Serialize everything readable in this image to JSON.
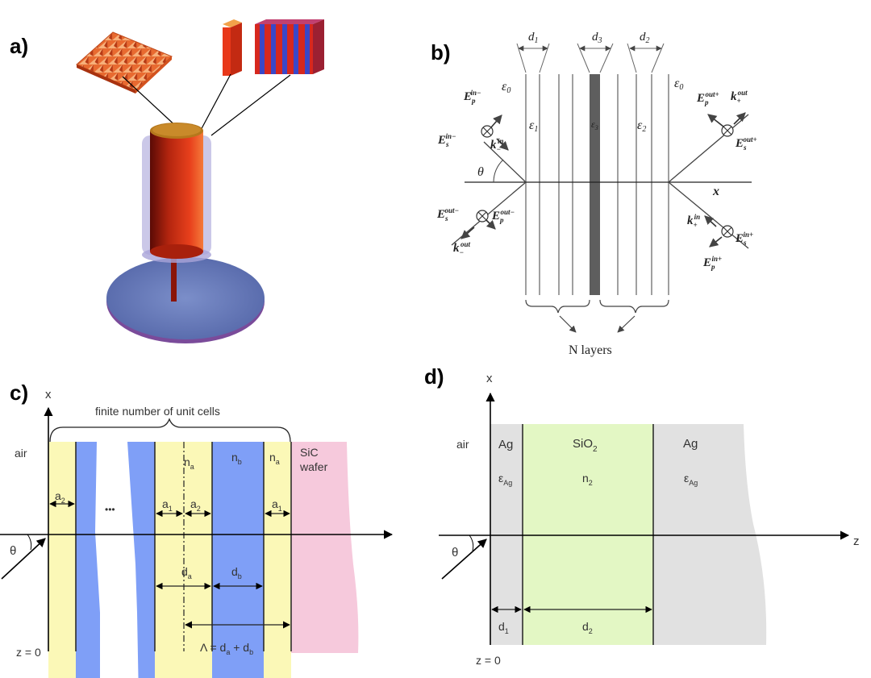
{
  "panels": {
    "a": {
      "label": "a)"
    },
    "b": {
      "label": "b)",
      "thickness_labels": [
        "d",
        "1",
        "d",
        "3",
        "d",
        "2"
      ],
      "eps0_left": [
        "ε",
        "0"
      ],
      "eps0_right": [
        "ε",
        "0"
      ],
      "eps1": [
        "ε",
        "1"
      ],
      "eps3": [
        "ε",
        "3"
      ],
      "eps2": [
        "ε",
        "2"
      ],
      "left_top_field": [
        "E",
        "p",
        "in−"
      ],
      "left_top_s": [
        "E",
        "s",
        "in−"
      ],
      "left_top_k": [
        "k",
        "−",
        "in"
      ],
      "theta": "θ",
      "left_bottom_s": [
        "E",
        "s",
        "out−"
      ],
      "left_bottom_p": [
        "E",
        "p",
        "out−"
      ],
      "left_bottom_k": [
        "k",
        "−",
        "out"
      ],
      "right_top_p": [
        "E",
        "p",
        "out+"
      ],
      "right_top_k": [
        "k",
        "+",
        "out"
      ],
      "right_top_s": [
        "E",
        "s",
        "out+"
      ],
      "right_bottom_k": [
        "k",
        "+",
        "in"
      ],
      "right_bottom_s": [
        "E",
        "s",
        "in+"
      ],
      "right_bottom_p": [
        "E",
        "p",
        "in+"
      ],
      "x_axis": "x",
      "n_layers": "N layers"
    },
    "c": {
      "label": "c)",
      "x_axis": "x",
      "brace_label": "finite number of unit cells",
      "air": "air",
      "sic": [
        "SiC",
        "wafer"
      ],
      "a2_left": [
        "a",
        "2"
      ],
      "dots": "•••",
      "a1": [
        "a",
        "1"
      ],
      "a2": [
        "a",
        "2"
      ],
      "a1_right": [
        "a",
        "1"
      ],
      "na_left": [
        "n",
        "a"
      ],
      "nb": [
        "n",
        "b"
      ],
      "na_right": [
        "n",
        "a"
      ],
      "theta": "θ",
      "da": [
        "d",
        "a"
      ],
      "db": [
        "d",
        "b"
      ],
      "z0": "z = 0",
      "period": [
        "Λ = d",
        "a",
        " + d",
        "b"
      ],
      "colors": {
        "yellow": "#fbf8b7",
        "blue": "#7f9ff7",
        "pink": "#f6c9dc"
      }
    },
    "d": {
      "label": "d)",
      "x_axis": "x",
      "z_axis": "z",
      "air": "air",
      "ag_left": "Ag",
      "sio2": [
        "SiO",
        "2"
      ],
      "ag_right": "Ag",
      "eps_ag_left": [
        "ε",
        "Ag"
      ],
      "n2": [
        "n",
        "2"
      ],
      "eps_ag_right": [
        "ε",
        "Ag"
      ],
      "theta": "θ",
      "d1": [
        "d",
        "1"
      ],
      "d2": [
        "d",
        "2"
      ],
      "z0": "z = 0",
      "colors": {
        "grey": "#e1e1e1",
        "green": "#e3f7c4"
      }
    }
  }
}
